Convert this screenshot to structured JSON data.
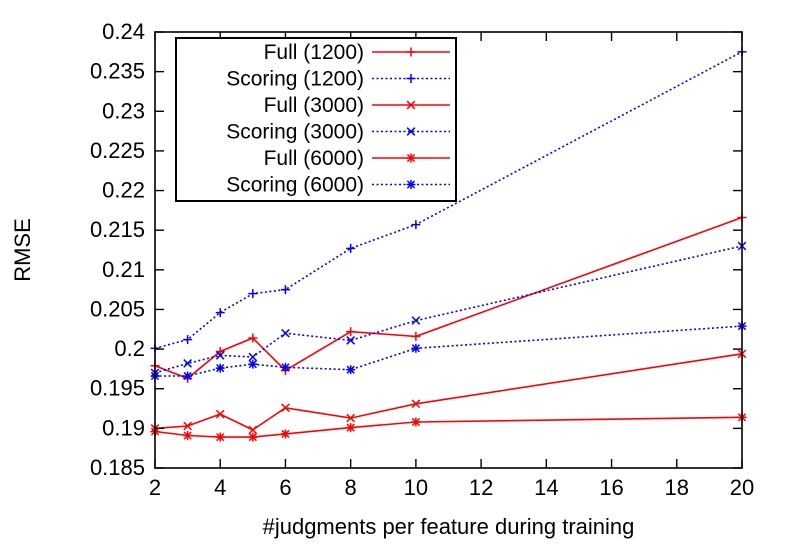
{
  "chart_data": {
    "type": "line",
    "title": "",
    "xlabel": "#judgments per feature during training",
    "ylabel": "RMSE",
    "xlim": [
      2,
      20
    ],
    "ylim": [
      0.185,
      0.24
    ],
    "xticks": [
      2,
      4,
      6,
      8,
      10,
      12,
      14,
      16,
      18,
      20
    ],
    "yticks": [
      0.185,
      0.19,
      0.195,
      0.2,
      0.205,
      0.21,
      0.215,
      0.22,
      0.225,
      0.23,
      0.235,
      0.24
    ],
    "x": [
      2,
      3,
      4,
      5,
      6,
      8,
      10,
      20
    ],
    "legend_position": "top-left",
    "grid": false,
    "series": [
      {
        "name": "Full (1200)",
        "color": "#ff0000",
        "dash": "solid",
        "marker": "plus",
        "values": [
          0.1979,
          0.1963,
          0.1997,
          0.2014,
          0.1973,
          0.2022,
          0.2016,
          0.2166
        ]
      },
      {
        "name": "Scoring (1200)",
        "color": "#0000ff",
        "dash": "dotted",
        "marker": "plus",
        "values": [
          0.2001,
          0.2012,
          0.2046,
          0.207,
          0.2075,
          0.2127,
          0.2157,
          0.2375
        ]
      },
      {
        "name": "Full (3000)",
        "color": "#ff0000",
        "dash": "solid",
        "marker": "x",
        "values": [
          0.19,
          0.1903,
          0.1918,
          0.1898,
          0.1926,
          0.1913,
          0.1931,
          0.1994
        ]
      },
      {
        "name": "Scoring (3000)",
        "color": "#0000ff",
        "dash": "dotted",
        "marker": "x",
        "values": [
          0.197,
          0.1982,
          0.1992,
          0.199,
          0.202,
          0.2011,
          0.2036,
          0.213
        ]
      },
      {
        "name": "Full (6000)",
        "color": "#ff0000",
        "dash": "solid",
        "marker": "star",
        "values": [
          0.1896,
          0.1891,
          0.1889,
          0.1889,
          0.1893,
          0.1901,
          0.1908,
          0.1914
        ]
      },
      {
        "name": "Scoring (6000)",
        "color": "#0000ff",
        "dash": "dotted",
        "marker": "star",
        "values": [
          0.1966,
          0.1966,
          0.1976,
          0.1981,
          0.1977,
          0.1974,
          0.2001,
          0.2029
        ]
      }
    ]
  }
}
